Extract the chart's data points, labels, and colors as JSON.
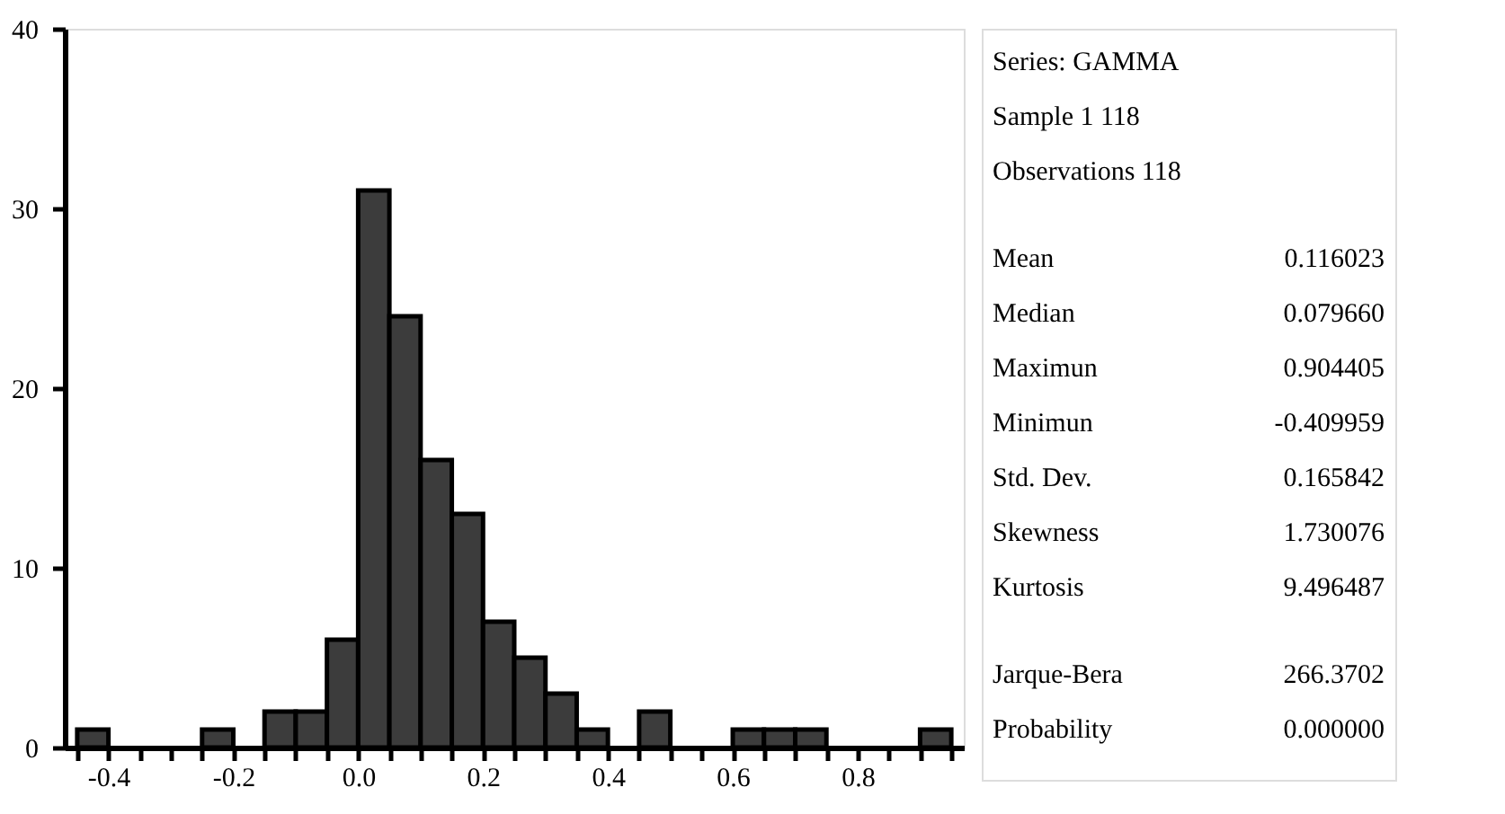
{
  "chart_data": [
    {
      "type": "histogram",
      "color": "#3c3c3c",
      "grid": false,
      "bins": [
        -0.45,
        -0.4,
        -0.35,
        -0.3,
        -0.25,
        -0.2,
        -0.15,
        -0.1,
        -0.05,
        0.0,
        0.05,
        0.1,
        0.15,
        0.2,
        0.25,
        0.3,
        0.35,
        0.4,
        0.45,
        0.5,
        0.55,
        0.6,
        0.65,
        0.7,
        0.75,
        0.8,
        0.85,
        0.9,
        0.95
      ],
      "values": [
        1,
        0,
        0,
        0,
        1,
        0,
        2,
        2,
        6,
        31,
        24,
        16,
        13,
        7,
        5,
        3,
        1,
        0,
        2,
        0,
        0,
        1,
        1,
        1,
        0,
        0,
        0,
        1
      ],
      "xlim": [
        -0.47,
        0.97
      ],
      "xticks": [
        {
          "value": -0.45,
          "label": null
        },
        -0.4,
        {
          "value": -0.35,
          "label": null
        },
        {
          "value": -0.3,
          "label": null
        },
        {
          "value": -0.25,
          "label": null
        },
        -0.2,
        {
          "value": -0.15,
          "label": null
        },
        {
          "value": -0.1,
          "label": null
        },
        {
          "value": -0.05,
          "label": null
        },
        {
          "value": 0,
          "label": "0.0"
        },
        {
          "value": 0.05,
          "label": null
        },
        {
          "value": 0.1,
          "label": null
        },
        {
          "value": 0.15,
          "label": null
        },
        0.2,
        {
          "value": 0.25,
          "label": null
        },
        {
          "value": 0.3,
          "label": null
        },
        {
          "value": 0.35,
          "label": null
        },
        0.4,
        {
          "value": 0.45,
          "label": null
        },
        {
          "value": 0.5,
          "label": null
        },
        {
          "value": 0.55,
          "label": null
        },
        0.6,
        {
          "value": 0.65,
          "label": null
        },
        {
          "value": 0.7,
          "label": null
        },
        {
          "value": 0.75,
          "label": null
        },
        0.8,
        {
          "value": 0.85,
          "label": null
        },
        {
          "value": 0.9,
          "label": null
        },
        {
          "value": 0.95,
          "label": null
        }
      ],
      "ylim": [
        0,
        40
      ],
      "yticks": [
        0,
        10,
        20,
        30,
        40
      ]
    },
    {
      "type": "other",
      "title": "Series: GAMMA",
      "annotations": [
        "Sample 1 118",
        "Observations 118"
      ],
      "categories": [
        "Mean",
        "Median",
        "Maximun",
        "Minimun",
        "Std. Dev.",
        "Skewness",
        "Kurtosis",
        "Jarque-Bera",
        "Probability"
      ],
      "value_labels": [
        "0.116023",
        "0.079660",
        "0.904405",
        "-0.409959",
        "0.165842",
        "1.730076",
        "9.496487",
        "266.3702",
        "0.000000"
      ]
    }
  ]
}
